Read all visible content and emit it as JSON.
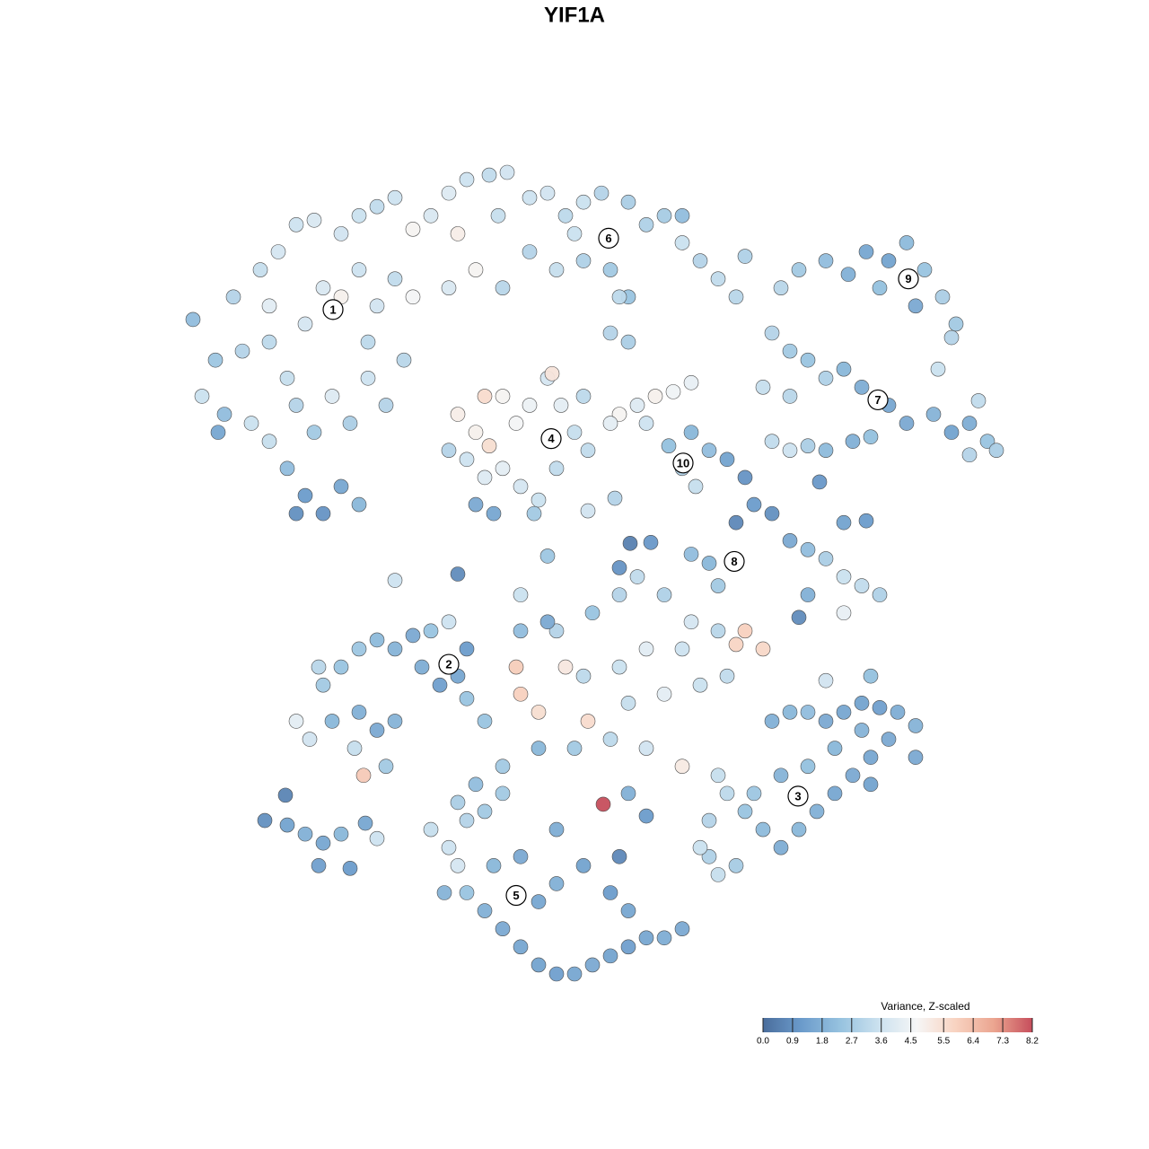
{
  "chart_data": {
    "type": "scatter",
    "title": "YIF1A",
    "x": [
      215,
      240,
      225,
      260,
      290,
      310,
      330,
      350,
      380,
      400,
      420,
      440,
      460,
      300,
      320,
      340,
      360,
      380,
      400,
      420,
      440,
      460,
      280,
      300,
      330,
      350,
      370,
      390,
      410,
      430,
      320,
      340,
      360,
      380,
      400,
      330,
      250,
      270,
      243,
      410,
      450,
      300,
      480,
      500,
      520,
      545,
      565,
      510,
      530,
      555,
      590,
      610,
      630,
      650,
      670,
      700,
      720,
      740,
      760,
      780,
      800,
      820,
      590,
      620,
      650,
      680,
      700,
      560,
      500,
      640,
      830,
      760,
      510,
      530,
      545,
      560,
      575,
      590,
      610,
      625,
      640,
      655,
      520,
      540,
      560,
      580,
      600,
      620,
      530,
      550,
      595,
      540,
      615,
      500,
      650,
      690,
      710,
      730,
      750,
      770,
      745,
      760,
      775,
      790,
      770,
      680,
      720,
      680,
      700,
      690,
      870,
      890,
      920,
      945,
      965,
      990,
      1010,
      1030,
      1050,
      1065,
      1020,
      980,
      860,
      880,
      900,
      920,
      940,
      960,
      990,
      1010,
      1040,
      1060,
      1080,
      1100,
      1110,
      1080,
      1060,
      1045,
      1090,
      850,
      880,
      860,
      880,
      900,
      920,
      950,
      970,
      913,
      830,
      810,
      820,
      840,
      860,
      880,
      900,
      920,
      940,
      960,
      980,
      900,
      890,
      940,
      770,
      790,
      800,
      940,
      965,
      330,
      345,
      360,
      380,
      400,
      420,
      440,
      460,
      480,
      500,
      470,
      490,
      510,
      520,
      400,
      420,
      440,
      405,
      430,
      370,
      355,
      395,
      520,
      580,
      575,
      600,
      630,
      655,
      620,
      660,
      690,
      710,
      740,
      770,
      800,
      830,
      820,
      850,
      760,
      720,
      690,
      650,
      700,
      740,
      780,
      810,
      600,
      640,
      680,
      720,
      760,
      800,
      540,
      560,
      580,
      610,
      672,
      700,
      720,
      860,
      880,
      900,
      920,
      940,
      960,
      980,
      1000,
      1020,
      990,
      970,
      950,
      930,
      910,
      890,
      870,
      850,
      830,
      810,
      790,
      790,
      800,
      820,
      840,
      870,
      900,
      930,
      960,
      1020,
      970,
      920,
      970,
      780,
      480,
      500,
      520,
      540,
      510,
      495,
      520,
      540,
      560,
      580,
      600,
      620,
      640,
      660,
      680,
      700,
      720,
      740,
      760,
      600,
      620,
      650,
      680,
      700,
      580,
      620,
      550,
      530,
      510,
      560,
      690,
      295,
      318,
      320,
      340,
      360,
      380,
      355,
      390,
      407,
      420,
      440,
      510,
      580,
      610,
      702,
      725,
      690,
      685,
      655
    ],
    "y": [
      -355,
      -400,
      -440,
      -330,
      -300,
      -280,
      -250,
      -245,
      -260,
      -240,
      -230,
      -220,
      -255,
      -380,
      -420,
      -360,
      -320,
      -330,
      -300,
      -340,
      -310,
      -330,
      -470,
      -490,
      -450,
      -480,
      -440,
      -470,
      -420,
      -450,
      -520,
      -550,
      -570,
      -540,
      -560,
      -570,
      -460,
      -390,
      -480,
      -380,
      -400,
      -340,
      -240,
      -215,
      -200,
      -195,
      -192,
      -260,
      -300,
      -240,
      -220,
      -215,
      -240,
      -225,
      -215,
      -225,
      -250,
      -240,
      -270,
      -290,
      -310,
      -330,
      -280,
      -300,
      -290,
      -300,
      -330,
      -320,
      -320,
      -260,
      -285,
      -240,
      -460,
      -480,
      -495,
      -440,
      -470,
      -450,
      -420,
      -450,
      -480,
      -500,
      -510,
      -530,
      -520,
      -540,
      -555,
      -520,
      -560,
      -570,
      -570,
      -440,
      -415,
      -500,
      -440,
      -460,
      -450,
      -440,
      -435,
      -425,
      -495,
      -520,
      -540,
      -500,
      -480,
      -470,
      -470,
      -370,
      -380,
      -330,
      -320,
      -300,
      -290,
      -305,
      -280,
      -290,
      -270,
      -300,
      -330,
      -360,
      -340,
      -320,
      -370,
      -390,
      -400,
      -420,
      -410,
      -430,
      -450,
      -470,
      -460,
      -480,
      -470,
      -490,
      -500,
      -505,
      -375,
      -410,
      -445,
      -430,
      -440,
      -490,
      -500,
      -495,
      -500,
      -490,
      -485,
      -535,
      -530,
      -510,
      -580,
      -560,
      -570,
      -600,
      -610,
      -620,
      -640,
      -650,
      -660,
      -660,
      -685,
      -680,
      -615,
      -625,
      -650,
      -580,
      -578,
      -800,
      -820,
      -760,
      -740,
      -720,
      -710,
      -720,
      -705,
      -700,
      -690,
      -740,
      -760,
      -750,
      -775,
      -790,
      -810,
      -800,
      -860,
      -850,
      -800,
      -740,
      -830,
      -720,
      -770,
      -740,
      -790,
      -740,
      -800,
      -700,
      -680,
      -660,
      -640,
      -660,
      -690,
      -700,
      -700,
      -715,
      -720,
      -720,
      -720,
      -740,
      -750,
      -780,
      -770,
      -760,
      -750,
      -830,
      -830,
      -820,
      -830,
      -850,
      -860,
      -800,
      -850,
      -700,
      -690,
      -892,
      -880,
      -905,
      -800,
      -790,
      -790,
      -800,
      -790,
      -780,
      -785,
      -790,
      -805,
      -820,
      -840,
      -860,
      -880,
      -900,
      -920,
      -940,
      -920,
      -900,
      -880,
      -910,
      -950,
      -970,
      -960,
      -880,
      -860,
      -850,
      -830,
      -810,
      -840,
      -870,
      -755,
      -750,
      -940,
      -920,
      -940,
      -910,
      -900,
      -960,
      -990,
      -990,
      -1010,
      -1030,
      -1050,
      -1070,
      -1080,
      -1080,
      -1070,
      -1060,
      -1050,
      -1040,
      -1040,
      -1030,
      -1000,
      -980,
      -960,
      -990,
      -1010,
      -950,
      -920,
      -960,
      -870,
      -890,
      -880,
      -950,
      -910,
      -882,
      -915,
      -925,
      -935,
      -925,
      -960,
      -963,
      -913,
      -930,
      -644,
      -637,
      -660,
      -617,
      -603,
      -602,
      -630,
      -553,
      -567
    ],
    "values": [
      2.2,
      2.5,
      3.5,
      3.0,
      3.4,
      3.8,
      3.6,
      3.9,
      3.7,
      3.5,
      3.3,
      3.6,
      4.8,
      3.2,
      3.4,
      3.8,
      3.9,
      4.9,
      3.6,
      3.7,
      3.3,
      4.6,
      3.5,
      3.4,
      3.0,
      2.6,
      4.0,
      2.8,
      3.6,
      3.0,
      2.2,
      1.2,
      1.0,
      1.5,
      2.0,
      0.9,
      2.2,
      3.0,
      1.5,
      3.2,
      3.1,
      4.1,
      3.9,
      4.0,
      3.6,
      3.3,
      3.7,
      5.0,
      4.8,
      3.4,
      3.6,
      3.7,
      3.2,
      3.5,
      3.0,
      2.8,
      2.9,
      2.7,
      3.5,
      3.0,
      3.3,
      3.1,
      3.0,
      3.4,
      2.9,
      2.6,
      2.4,
      3.1,
      3.9,
      3.5,
      2.9,
      2.2,
      5.0,
      4.9,
      5.5,
      4.8,
      4.6,
      4.4,
      3.8,
      4.2,
      3.4,
      3.3,
      3.6,
      4.0,
      4.2,
      3.8,
      3.5,
      3.3,
      1.6,
      1.5,
      2.6,
      5.6,
      5.3,
      3.0,
      3.2,
      4.8,
      4.0,
      4.9,
      4.5,
      4.3,
      2.3,
      2.9,
      3.4,
      2.2,
      2.0,
      4.2,
      3.6,
      3.0,
      2.8,
      3.2,
      3.1,
      2.6,
      2.2,
      1.8,
      1.5,
      1.4,
      2.1,
      2.4,
      2.8,
      2.6,
      1.6,
      2.3,
      3.0,
      2.6,
      2.4,
      2.9,
      2.0,
      1.7,
      1.5,
      1.6,
      1.9,
      1.4,
      1.7,
      2.4,
      2.8,
      3.0,
      3.0,
      3.5,
      3.3,
      3.4,
      3.1,
      3.3,
      3.6,
      2.8,
      2.1,
      1.8,
      2.3,
      1.1,
      1.0,
      1.4,
      0.7,
      1.2,
      0.9,
      1.6,
      2.2,
      2.8,
      3.5,
      3.3,
      2.9,
      1.8,
      0.8,
      4.3,
      2.2,
      2.0,
      2.6,
      1.4,
      1.2,
      4.2,
      3.7,
      2.6,
      2.4,
      2.5,
      2.1,
      1.9,
      1.6,
      2.4,
      3.6,
      1.7,
      1.3,
      1.5,
      2.4,
      1.8,
      1.6,
      1.9,
      6.1,
      2.6,
      2.0,
      3.1,
      3.4,
      1.2,
      5.9,
      6.0,
      5.5,
      5.2,
      5.6,
      3.0,
      2.4,
      3.0,
      3.3,
      2.9,
      3.8,
      3.1,
      5.9,
      5.8,
      5.7,
      3.6,
      4.1,
      3.5,
      3.2,
      3.4,
      4.2,
      3.5,
      3.3,
      2.0,
      2.6,
      3.2,
      3.7,
      5.1,
      3.4,
      2.4,
      2.6,
      2.2,
      1.6,
      8.2,
      1.8,
      1.2,
      1.8,
      2.0,
      2.2,
      1.6,
      1.5,
      1.4,
      1.3,
      1.7,
      1.9,
      1.6,
      1.5,
      1.6,
      1.5,
      1.8,
      2.0,
      1.7,
      2.1,
      2.4,
      3.2,
      3.0,
      2.9,
      3.4,
      2.7,
      2.5,
      1.9,
      2.3,
      2.0,
      1.9,
      1.6,
      1.4,
      3.7,
      2.3,
      3.5,
      3.4,
      3.6,
      3.0,
      2.6,
      3.8,
      1.9,
      2.4,
      1.8,
      1.6,
      1.5,
      1.4,
      1.3,
      1.5,
      1.6,
      1.4,
      1.3,
      1.5,
      1.7,
      1.6,
      1.5,
      1.8,
      1.4,
      1.2,
      1.5,
      1.6,
      1.7,
      2.0,
      2.2,
      2.8,
      2.6,
      0.7,
      0.9,
      0.6,
      1.4,
      1.8,
      1.5,
      2.0,
      1.3,
      1.2,
      1.5,
      3.6,
      3.6,
      0.8,
      3.5,
      2.5,
      0.5,
      1.1,
      1.0,
      3.0,
      3.7
    ],
    "clusters": [
      {
        "label": "1",
        "x": 371,
        "y": -344
      },
      {
        "label": "2",
        "x": 500,
        "y": -737
      },
      {
        "label": "3",
        "x": 889,
        "y": -883
      },
      {
        "label": "4",
        "x": 614,
        "y": -487
      },
      {
        "label": "5",
        "x": 575,
        "y": -993
      },
      {
        "label": "6",
        "x": 678,
        "y": -265
      },
      {
        "label": "7",
        "x": 978,
        "y": -444
      },
      {
        "label": "8",
        "x": 818,
        "y": -623
      },
      {
        "label": "9",
        "x": 1012,
        "y": -310
      },
      {
        "label": "10",
        "x": 761,
        "y": -514
      }
    ],
    "colorbar_title": "Variance, Z-scaled",
    "clim": [
      0,
      8.2
    ],
    "cticks": [
      {
        "value": 0,
        "label": "0.0"
      },
      0.9,
      1.8,
      2.7,
      3.6,
      4.5,
      5.5,
      6.4,
      7.3,
      8.2
    ],
    "colors": [
      "#4a6d9c",
      "#6b9bcb",
      "#96c2df",
      "#cbe1ef",
      "#f6f6f6",
      "#f8d3c1",
      "#eba590",
      "#c64e5c"
    ]
  }
}
